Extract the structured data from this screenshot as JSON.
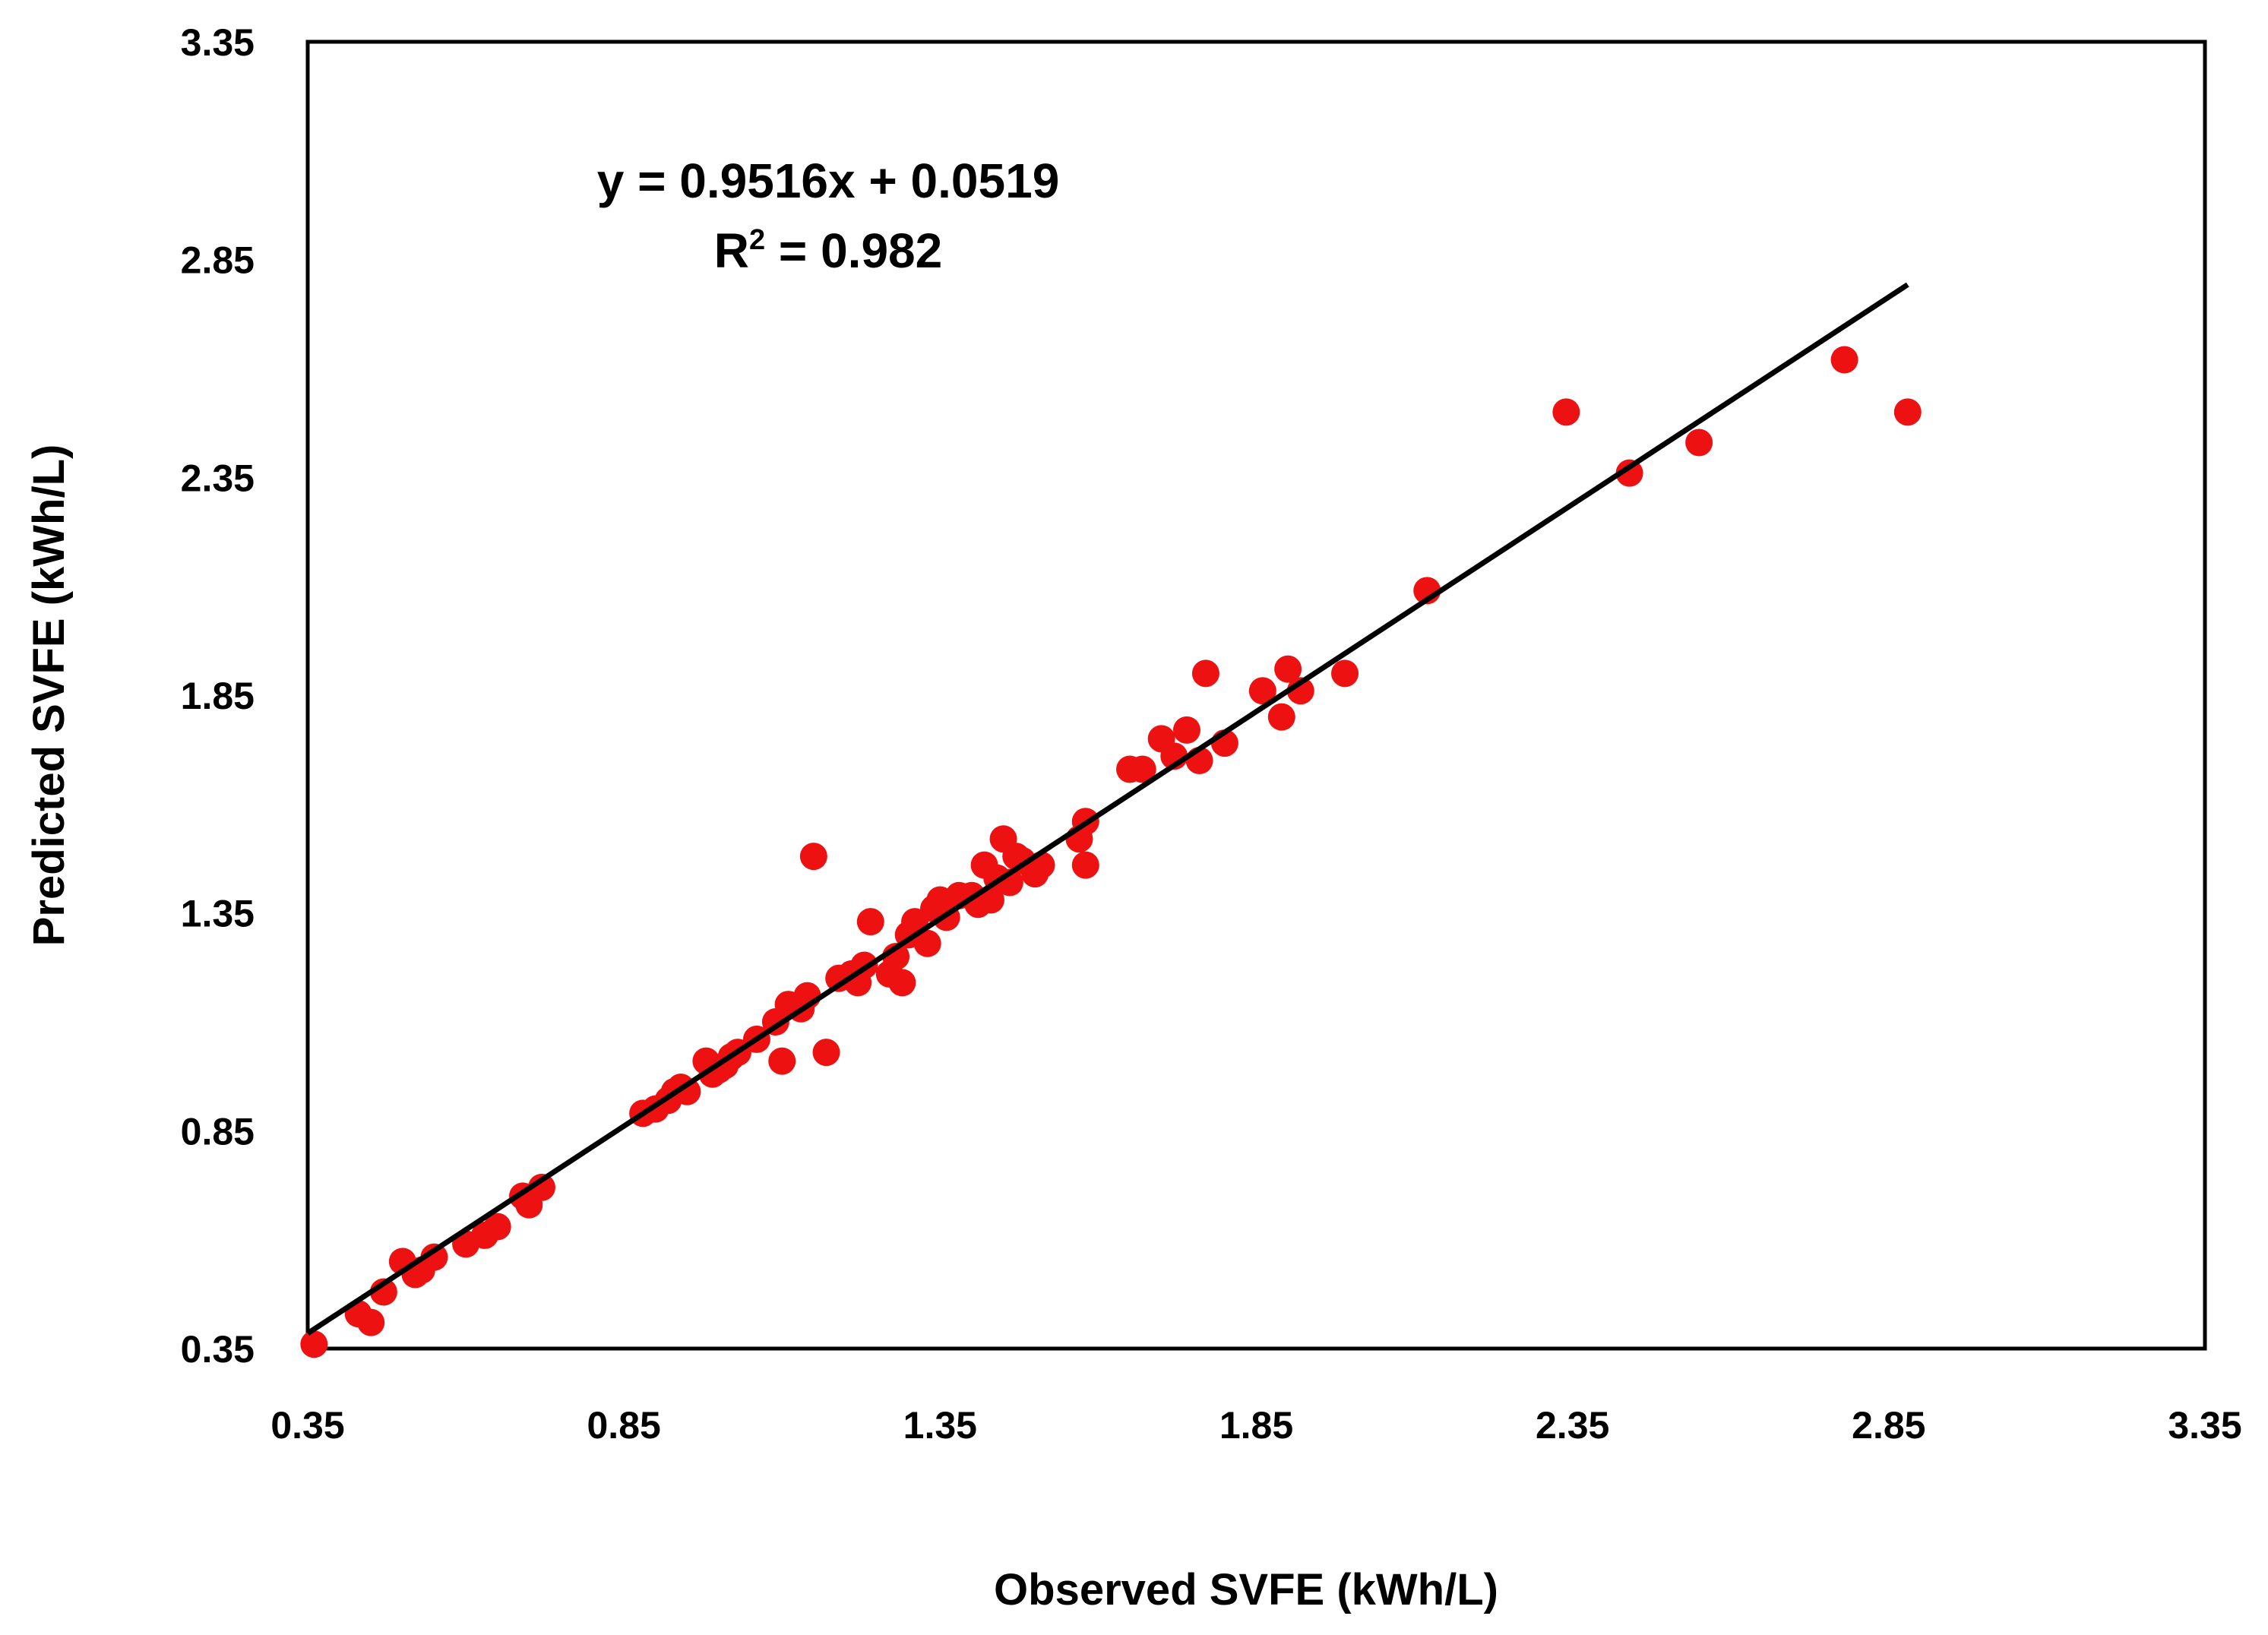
{
  "chart_data": {
    "type": "scatter",
    "title": "",
    "xlabel": "Observed SVFE (kWh/L)",
    "ylabel": "Predicted SVFE (kWh/L)",
    "xlim": [
      0.35,
      3.35
    ],
    "ylim": [
      0.35,
      3.35
    ],
    "xticks": [
      "0.35",
      "0.85",
      "1.35",
      "1.85",
      "2.35",
      "2.85",
      "3.35"
    ],
    "yticks": [
      "0.35",
      "0.85",
      "1.35",
      "1.85",
      "2.35",
      "2.85",
      "3.35"
    ],
    "grid": false,
    "legend": "none",
    "marker_color": "#ee1111",
    "trendline_color": "#000000",
    "annotations": {
      "equation": "y = 0.9516x + 0.0519",
      "r2_prefix": "R",
      "r2_sup": "2",
      "r2_value": " = 0.982"
    },
    "trendline": {
      "slope": 0.9516,
      "intercept": 0.0519,
      "x_range": [
        0.35,
        2.88
      ]
    },
    "series": [
      {
        "name": "SVFE",
        "points": [
          [
            0.36,
            0.36
          ],
          [
            0.43,
            0.43
          ],
          [
            0.45,
            0.41
          ],
          [
            0.47,
            0.48
          ],
          [
            0.5,
            0.55
          ],
          [
            0.52,
            0.52
          ],
          [
            0.53,
            0.53
          ],
          [
            0.55,
            0.56
          ],
          [
            0.6,
            0.59
          ],
          [
            0.63,
            0.61
          ],
          [
            0.65,
            0.63
          ],
          [
            0.69,
            0.7
          ],
          [
            0.7,
            0.68
          ],
          [
            0.72,
            0.72
          ],
          [
            0.88,
            0.89
          ],
          [
            0.9,
            0.9
          ],
          [
            0.92,
            0.92
          ],
          [
            0.93,
            0.94
          ],
          [
            0.94,
            0.95
          ],
          [
            0.95,
            0.94
          ],
          [
            0.98,
            1.01
          ],
          [
            0.99,
            0.98
          ],
          [
            1.0,
            0.99
          ],
          [
            1.01,
            1.0
          ],
          [
            1.02,
            1.02
          ],
          [
            1.03,
            1.03
          ],
          [
            1.06,
            1.06
          ],
          [
            1.09,
            1.1
          ],
          [
            1.1,
            1.01
          ],
          [
            1.11,
            1.14
          ],
          [
            1.13,
            1.13
          ],
          [
            1.14,
            1.16
          ],
          [
            1.15,
            1.48
          ],
          [
            1.17,
            1.03
          ],
          [
            1.19,
            1.2
          ],
          [
            1.21,
            1.21
          ],
          [
            1.22,
            1.19
          ],
          [
            1.23,
            1.23
          ],
          [
            1.24,
            1.33
          ],
          [
            1.27,
            1.21
          ],
          [
            1.28,
            1.25
          ],
          [
            1.29,
            1.19
          ],
          [
            1.3,
            1.3
          ],
          [
            1.31,
            1.33
          ],
          [
            1.33,
            1.28
          ],
          [
            1.34,
            1.36
          ],
          [
            1.35,
            1.38
          ],
          [
            1.36,
            1.34
          ],
          [
            1.38,
            1.39
          ],
          [
            1.4,
            1.39
          ],
          [
            1.41,
            1.37
          ],
          [
            1.42,
            1.46
          ],
          [
            1.43,
            1.38
          ],
          [
            1.44,
            1.43
          ],
          [
            1.45,
            1.52
          ],
          [
            1.46,
            1.42
          ],
          [
            1.47,
            1.48
          ],
          [
            1.48,
            1.47
          ],
          [
            1.5,
            1.44
          ],
          [
            1.51,
            1.46
          ],
          [
            1.57,
            1.52
          ],
          [
            1.58,
            1.46
          ],
          [
            1.58,
            1.56
          ],
          [
            1.65,
            1.68
          ],
          [
            1.67,
            1.68
          ],
          [
            1.7,
            1.75
          ],
          [
            1.72,
            1.71
          ],
          [
            1.74,
            1.77
          ],
          [
            1.76,
            1.7
          ],
          [
            1.77,
            1.9
          ],
          [
            1.8,
            1.74
          ],
          [
            1.86,
            1.86
          ],
          [
            1.89,
            1.8
          ],
          [
            1.9,
            1.91
          ],
          [
            1.92,
            1.86
          ],
          [
            1.99,
            1.9
          ],
          [
            2.12,
            2.09
          ],
          [
            2.34,
            2.5
          ],
          [
            2.44,
            2.36
          ],
          [
            2.55,
            2.43
          ],
          [
            2.78,
            2.62
          ],
          [
            2.88,
            2.5
          ]
        ]
      }
    ]
  }
}
